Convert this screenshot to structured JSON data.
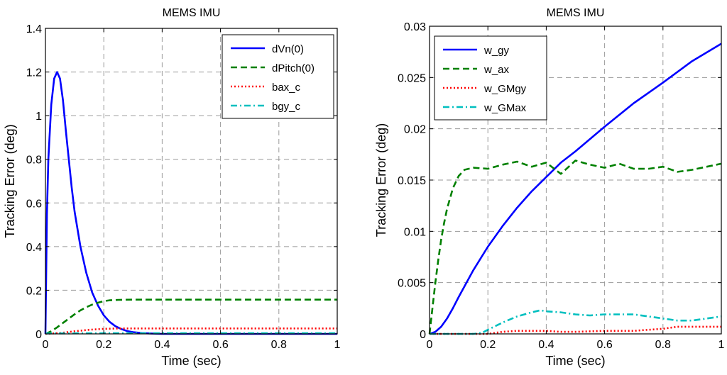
{
  "chart_data": [
    {
      "type": "line",
      "title": "MEMS IMU",
      "xlabel": "Time (sec)",
      "ylabel": "Tracking Error (deg)",
      "xlim": [
        0,
        1
      ],
      "ylim": [
        0,
        1.4
      ],
      "xticks": [
        0,
        0.2,
        0.4,
        0.6,
        0.8,
        1
      ],
      "xtick_labels": [
        "0",
        "0.2",
        "0.4",
        "0.6",
        "0.8",
        "1"
      ],
      "yticks": [
        0,
        0.2,
        0.4,
        0.6,
        0.8,
        1,
        1.2,
        1.4
      ],
      "ytick_labels": [
        "0",
        "0.2",
        "0.4",
        "0.6",
        "0.8",
        "1",
        "1.2",
        "1.4"
      ],
      "grid": true,
      "legend_position": "top-right",
      "series": [
        {
          "name": "dVn(0)",
          "color": "#0000ff",
          "style": "solid",
          "x": [
            0,
            0.005,
            0.01,
            0.02,
            0.03,
            0.04,
            0.05,
            0.06,
            0.07,
            0.08,
            0.09,
            0.1,
            0.12,
            0.14,
            0.16,
            0.18,
            0.2,
            0.22,
            0.24,
            0.26,
            0.28,
            0.3,
            0.33,
            0.36,
            0.4,
            0.5,
            0.6,
            0.7,
            0.8,
            0.9,
            1.0
          ],
          "y": [
            0,
            0.55,
            0.8,
            1.05,
            1.17,
            1.2,
            1.17,
            1.07,
            0.93,
            0.8,
            0.67,
            0.56,
            0.4,
            0.28,
            0.19,
            0.13,
            0.085,
            0.055,
            0.035,
            0.022,
            0.013,
            0.008,
            0.004,
            0.002,
            0.0,
            0.0,
            0.0,
            0.0,
            0.0,
            0.0,
            0.0
          ]
        },
        {
          "name": "dPitch(0)",
          "color": "#008000",
          "style": "dashed",
          "x": [
            0,
            0.02,
            0.04,
            0.06,
            0.08,
            0.1,
            0.12,
            0.14,
            0.16,
            0.18,
            0.2,
            0.22,
            0.25,
            0.3,
            0.4,
            0.6,
            0.8,
            1.0
          ],
          "y": [
            0,
            0.012,
            0.03,
            0.05,
            0.07,
            0.09,
            0.108,
            0.122,
            0.134,
            0.143,
            0.15,
            0.154,
            0.156,
            0.157,
            0.157,
            0.157,
            0.157,
            0.157
          ]
        },
        {
          "name": "bax_c",
          "color": "#ff0000",
          "style": "dotted",
          "x": [
            0,
            0.05,
            0.1,
            0.15,
            0.2,
            0.25,
            0.3,
            0.4,
            0.6,
            0.8,
            1.0
          ],
          "y": [
            0,
            0.004,
            0.012,
            0.019,
            0.023,
            0.025,
            0.025,
            0.025,
            0.025,
            0.025,
            0.025
          ]
        },
        {
          "name": "bgy_c",
          "color": "#00bfbf",
          "style": "dashdot",
          "x": [
            0,
            0.2,
            0.4,
            0.6,
            0.8,
            1.0
          ],
          "y": [
            0.002,
            0.003,
            0.003,
            0.003,
            0.003,
            0.003
          ]
        }
      ]
    },
    {
      "type": "line",
      "title": "MEMS IMU",
      "xlabel": "Time (sec)",
      "ylabel": "Tracking Error (deg)",
      "xlim": [
        0,
        1
      ],
      "ylim": [
        0,
        0.03
      ],
      "xticks": [
        0,
        0.2,
        0.4,
        0.6,
        0.8,
        1
      ],
      "xtick_labels": [
        "0",
        "0.2",
        "0.4",
        "0.6",
        "0.8",
        "1"
      ],
      "yticks": [
        0,
        0.005,
        0.01,
        0.015,
        0.02,
        0.025,
        0.03
      ],
      "ytick_labels": [
        "0",
        "0.005",
        "0.01",
        "0.015",
        "0.02",
        "0.025",
        "0.03"
      ],
      "grid": true,
      "legend_position": "top-left",
      "series": [
        {
          "name": "w_gy",
          "color": "#0000ff",
          "style": "solid",
          "x": [
            0,
            0.02,
            0.04,
            0.06,
            0.08,
            0.1,
            0.15,
            0.2,
            0.25,
            0.3,
            0.35,
            0.4,
            0.45,
            0.5,
            0.6,
            0.7,
            0.8,
            0.9,
            1.0
          ],
          "y": [
            0,
            0.0002,
            0.0007,
            0.0015,
            0.0025,
            0.0036,
            0.0062,
            0.0085,
            0.0105,
            0.0123,
            0.0139,
            0.0153,
            0.0167,
            0.0178,
            0.0202,
            0.0225,
            0.0245,
            0.0266,
            0.0283
          ]
        },
        {
          "name": "w_ax",
          "color": "#008000",
          "style": "dashed",
          "x": [
            0,
            0.01,
            0.02,
            0.03,
            0.04,
            0.05,
            0.06,
            0.08,
            0.1,
            0.12,
            0.15,
            0.2,
            0.25,
            0.3,
            0.35,
            0.4,
            0.45,
            0.5,
            0.55,
            0.6,
            0.65,
            0.7,
            0.75,
            0.8,
            0.85,
            0.9,
            0.95,
            1.0
          ],
          "y": [
            0,
            0.0025,
            0.005,
            0.0072,
            0.0092,
            0.0108,
            0.0122,
            0.0142,
            0.0154,
            0.016,
            0.0162,
            0.0161,
            0.0165,
            0.0168,
            0.0163,
            0.0167,
            0.0156,
            0.0169,
            0.0165,
            0.0162,
            0.0166,
            0.0161,
            0.0161,
            0.0163,
            0.0158,
            0.016,
            0.0163,
            0.0166
          ]
        },
        {
          "name": "w_GMgy",
          "color": "#ff0000",
          "style": "dotted",
          "x": [
            0,
            0.2,
            0.25,
            0.3,
            0.35,
            0.4,
            0.45,
            0.5,
            0.6,
            0.7,
            0.8,
            0.85,
            0.9,
            1.0
          ],
          "y": [
            0,
            0,
            0.0002,
            0.0003,
            0.0003,
            0.0003,
            0.0002,
            0.0002,
            0.0003,
            0.0003,
            0.0005,
            0.0007,
            0.0007,
            0.0007
          ]
        },
        {
          "name": "w_GMax",
          "color": "#00bfbf",
          "style": "dashdot",
          "x": [
            0,
            0.15,
            0.18,
            0.2,
            0.25,
            0.3,
            0.35,
            0.38,
            0.4,
            0.45,
            0.5,
            0.55,
            0.6,
            0.7,
            0.8,
            0.85,
            0.9,
            0.95,
            1.0
          ],
          "y": [
            0,
            0,
            0.0001,
            0.0004,
            0.0011,
            0.0017,
            0.0021,
            0.0023,
            0.0022,
            0.0021,
            0.0019,
            0.0018,
            0.0019,
            0.0019,
            0.0015,
            0.0013,
            0.0013,
            0.0015,
            0.0017
          ]
        }
      ]
    }
  ]
}
